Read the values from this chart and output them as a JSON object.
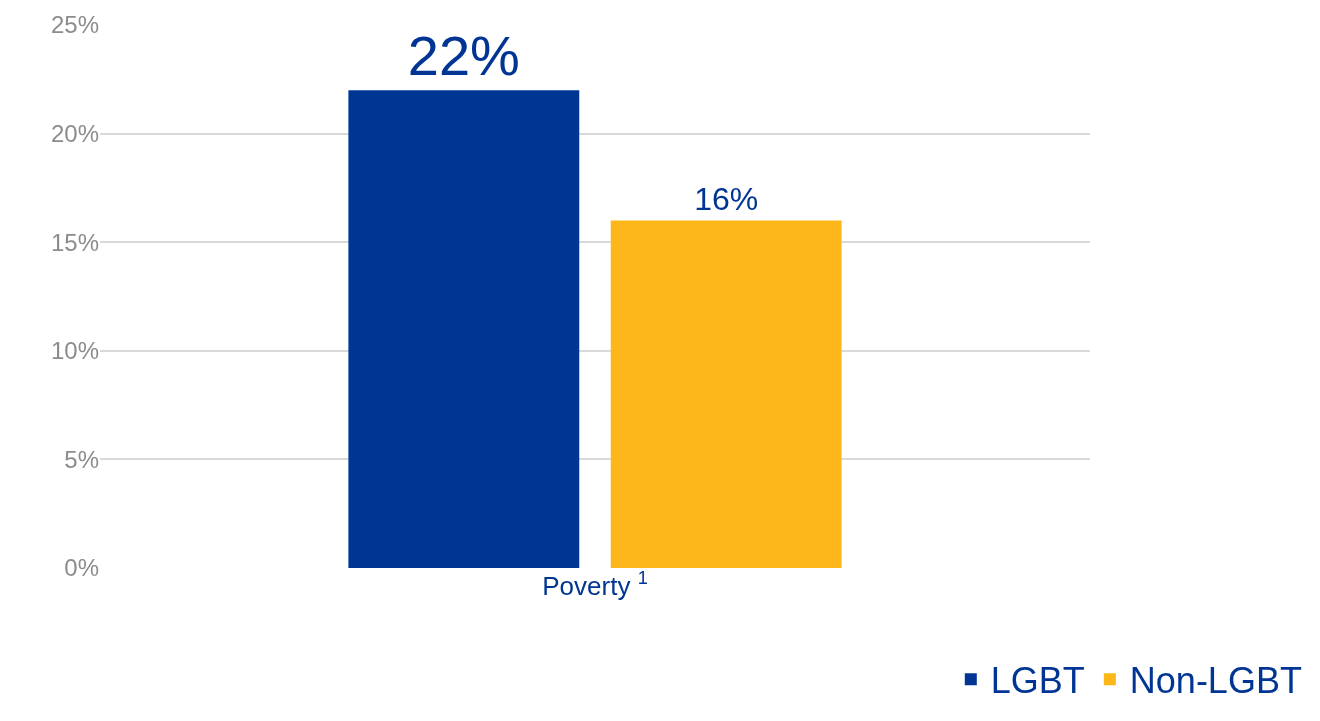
{
  "chart_data": {
    "type": "bar",
    "categories": [
      "Poverty $^{1}$"
    ],
    "series": [
      {
        "name": "LGBT",
        "color": "#003594",
        "values": [
          22
        ],
        "value_labels": [
          "22%"
        ]
      },
      {
        "name": "Non-LGBT",
        "color": "#fdb71a",
        "values": [
          16
        ],
        "value_labels": [
          "16%"
        ]
      }
    ],
    "ylim": [
      0,
      25
    ],
    "yticks": [
      {
        "value": 0,
        "label": "0%"
      },
      {
        "value": 5,
        "label": "5%"
      },
      {
        "value": 10,
        "label": "10%"
      },
      {
        "value": 15,
        "label": "15%"
      },
      {
        "value": 20,
        "label": "20%"
      },
      {
        "value": 25,
        "label": "25%"
      }
    ],
    "grid": "y",
    "legend": "bottom right"
  }
}
